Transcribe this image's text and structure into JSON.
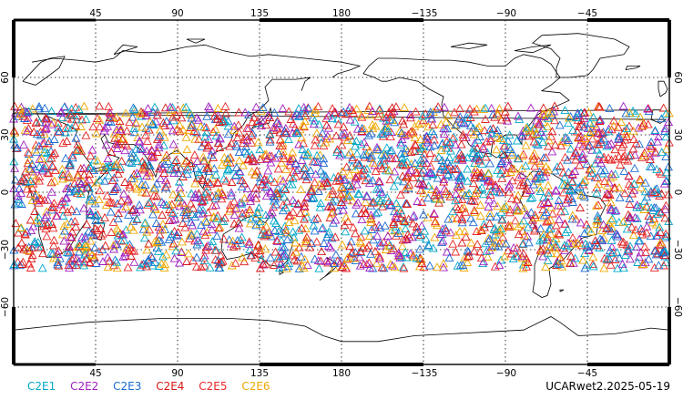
{
  "map": {
    "projection": "cylindrical-equidistant",
    "center_longitude": 180,
    "lon_range": [
      0,
      360
    ],
    "lat_range": [
      -90,
      90
    ],
    "grid": "dotted",
    "top_lon_labels": [
      "45",
      "90",
      "135",
      "180",
      "−135",
      "−90",
      "−45"
    ],
    "bottom_lon_labels": [
      "45",
      "90",
      "135",
      "180",
      "−135",
      "−90",
      "−45"
    ],
    "left_lat_labels": [
      "60",
      "30",
      "0",
      "−30",
      "−60"
    ],
    "right_lat_labels": [
      "60",
      "30",
      "0",
      "−30",
      "−60"
    ],
    "lon_ticks": [
      45,
      90,
      135,
      180,
      225,
      270,
      315
    ],
    "lat_ticks": [
      60,
      30,
      0,
      -30,
      -60
    ],
    "marker": "open-triangle",
    "data_lat_band": [
      -40,
      45
    ]
  },
  "legend": {
    "items": [
      {
        "label": "C2E1",
        "color": "#00a8c8"
      },
      {
        "label": "C2E2",
        "color": "#a020c0"
      },
      {
        "label": "C2E3",
        "color": "#1a6ad0"
      },
      {
        "label": "C2E4",
        "color": "#d81818"
      },
      {
        "label": "C2E5",
        "color": "#e82828"
      },
      {
        "label": "C2E6",
        "color": "#f0a800"
      }
    ]
  },
  "credit": "UCARwet2.2025-05-19"
}
